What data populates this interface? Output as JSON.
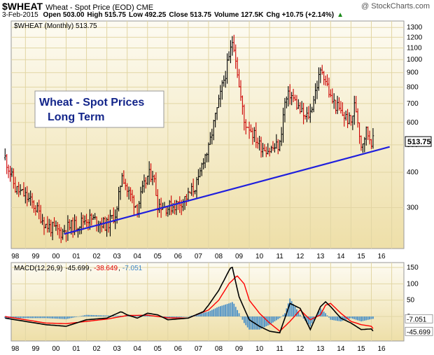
{
  "header": {
    "symbol": "$WHEAT",
    "name": "Wheat - Spot Price (EOD)",
    "exchange": "CME",
    "date": "3-Feb-2015",
    "open": "Open 503.00",
    "high": "High 515.75",
    "low": "Low 492.25",
    "close": "Close 513.75",
    "volume": "Volume 127.5K",
    "change": "Chg +10.75 (+2.14%)",
    "change_arrow": "▲",
    "watermark": "@ StockCharts.com"
  },
  "colors": {
    "up_bar": "#000000",
    "down_bar": "#cc0000",
    "trendline": "#1f1fdd",
    "macd_line": "#000000",
    "signal_line": "#ff0000",
    "histogram": "#4a90c8",
    "price_label_bg": "#ffffff",
    "panel_gradient_top": "#fdfbf2",
    "panel_gradient_bottom": "#eedfa8"
  },
  "chart_data": [
    {
      "type": "line",
      "title": "$WHEAT (Monthly) 513.75",
      "annotation": [
        "Wheat - Spot Prices",
        "Long Term"
      ],
      "scale": "log",
      "x_ticks": [
        "98",
        "99",
        "00",
        "01",
        "02",
        "03",
        "04",
        "05",
        "06",
        "07",
        "08",
        "09",
        "10",
        "11",
        "12",
        "13",
        "14",
        "15",
        "16"
      ],
      "y_ticks": [
        300,
        400,
        500,
        600,
        700,
        800,
        900,
        1000,
        1100,
        1200,
        1300
      ],
      "ylim": [
        215,
        1370
      ],
      "last_value_label": "513.75",
      "series": [
        {
          "values_x": [
            1997.0,
            1997.5,
            1998.0,
            1998.5,
            1999.0,
            1999.5,
            1999.8,
            2000.0,
            2000.5,
            2001.0,
            2001.5,
            2002.0,
            2002.5,
            2002.75,
            2003.0,
            2003.5,
            2004.0,
            2004.25,
            2004.5,
            2005.0,
            2005.5,
            2006.0,
            2006.5,
            2006.75,
            2007.0,
            2007.5,
            2007.75,
            2008.0,
            2008.2,
            2008.5,
            2008.75,
            2009.0,
            2009.5,
            2010.0,
            2010.5,
            2010.75,
            2011.0,
            2011.5,
            2011.75,
            2012.0,
            2012.5,
            2012.6,
            2013.0,
            2013.5,
            2014.0,
            2014.2,
            2014.5,
            2014.75,
            2015.0,
            2015.1
          ],
          "values_y": [
            450,
            350,
            330,
            300,
            260,
            250,
            245,
            255,
            260,
            275,
            270,
            260,
            290,
            400,
            345,
            300,
            385,
            400,
            310,
            300,
            310,
            330,
            370,
            450,
            480,
            700,
            850,
            1000,
            1200,
            800,
            600,
            580,
            500,
            480,
            500,
            700,
            760,
            660,
            620,
            650,
            900,
            920,
            730,
            650,
            600,
            700,
            500,
            560,
            520,
            514
          ]
        }
      ],
      "trendline": {
        "x": [
          1999.9,
          2015.9
        ],
        "y": [
          242,
          492
        ]
      }
    },
    {
      "type": "line",
      "title": "MACD(12,26,9) -45.699, -38.649, -7.051",
      "legend": [
        "MACD(12,26,9)",
        "-45.699",
        "-38.649",
        "-7.051"
      ],
      "x_ticks": [
        "98",
        "99",
        "00",
        "01",
        "02",
        "03",
        "04",
        "05",
        "06",
        "07",
        "08",
        "09",
        "10",
        "11",
        "12",
        "13",
        "14",
        "15",
        "16"
      ],
      "y_ticks": [
        0,
        50,
        100,
        150
      ],
      "ylim": [
        -75,
        165
      ],
      "value_labels": [
        "-7.051",
        "-45.699"
      ],
      "series": [
        {
          "name": "MACD(12,26,9)",
          "x": [
            1997.0,
            1998.0,
            1999.0,
            2000.0,
            2001.0,
            2002.0,
            2002.7,
            2003.0,
            2003.5,
            2004.0,
            2004.5,
            2005.0,
            2006.0,
            2006.75,
            2007.0,
            2007.5,
            2008.0,
            2008.15,
            2008.5,
            2009.0,
            2009.5,
            2010.0,
            2010.5,
            2011.0,
            2011.5,
            2012.0,
            2012.5,
            2012.75,
            2013.0,
            2013.5,
            2014.0,
            2014.5,
            2015.0,
            2015.1
          ],
          "values": [
            -5,
            -15,
            -25,
            -30,
            -10,
            -5,
            15,
            5,
            -5,
            10,
            5,
            -10,
            -5,
            15,
            35,
            80,
            140,
            155,
            60,
            -10,
            -30,
            -45,
            -50,
            40,
            25,
            -40,
            30,
            45,
            30,
            -5,
            -20,
            -40,
            -38,
            -45.699
          ]
        },
        {
          "name": "Signal",
          "x": [
            1997.0,
            1998.0,
            1999.0,
            2000.0,
            2001.0,
            2002.0,
            2003.0,
            2004.0,
            2005.0,
            2006.0,
            2007.0,
            2007.5,
            2008.0,
            2008.4,
            2008.75,
            2009.0,
            2009.5,
            2010.0,
            2010.5,
            2011.0,
            2011.5,
            2012.0,
            2012.5,
            2012.75,
            2013.0,
            2013.5,
            2014.0,
            2014.5,
            2015.0,
            2015.1
          ],
          "values": [
            0,
            -10,
            -20,
            -22,
            -15,
            -8,
            3,
            4,
            -4,
            -5,
            20,
            50,
            100,
            125,
            100,
            50,
            10,
            -20,
            -45,
            -15,
            20,
            -10,
            5,
            35,
            40,
            10,
            -15,
            -25,
            -30,
            -38.649
          ]
        },
        {
          "name": "Histogram",
          "x": [
            1997.0,
            1998.0,
            1999.0,
            2000.0,
            2001.0,
            2002.0,
            2003.0,
            2004.0,
            2005.0,
            2006.0,
            2007.0,
            2007.5,
            2008.0,
            2008.2,
            2008.5,
            2008.75,
            2009.0,
            2009.5,
            2010.0,
            2010.5,
            2010.75,
            2011.0,
            2011.5,
            2012.0,
            2012.5,
            2012.75,
            2013.0,
            2013.5,
            2014.0,
            2014.5,
            2015.0,
            2015.1
          ],
          "values": [
            -5,
            -5,
            -5,
            -8,
            5,
            3,
            2,
            6,
            -6,
            0,
            15,
            30,
            40,
            45,
            10,
            -20,
            -40,
            -40,
            -25,
            -5,
            10,
            55,
            5,
            -30,
            25,
            10,
            -10,
            -15,
            -5,
            -15,
            -8,
            -7.051
          ]
        }
      ]
    }
  ]
}
